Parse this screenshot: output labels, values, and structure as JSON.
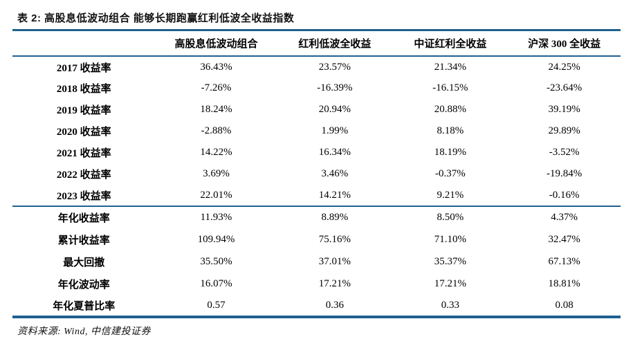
{
  "title": "表 2: 高股息低波动组合 能够长期跑赢红利低波全收益指数",
  "table": {
    "columns": {
      "label_col": "",
      "col1": "高股息低波动组合",
      "col2": "红利低波全收益",
      "col3": "中证红利全收益",
      "col4": "沪深 300 全收益"
    },
    "yearly_rows": [
      {
        "label": "2017 收益率",
        "values": [
          "36.43%",
          "23.57%",
          "21.34%",
          "24.25%"
        ]
      },
      {
        "label": "2018 收益率",
        "values": [
          "-7.26%",
          "-16.39%",
          "-16.15%",
          "-23.64%"
        ]
      },
      {
        "label": "2019 收益率",
        "values": [
          "18.24%",
          "20.94%",
          "20.88%",
          "39.19%"
        ]
      },
      {
        "label": "2020 收益率",
        "values": [
          "-2.88%",
          "1.99%",
          "8.18%",
          "29.89%"
        ]
      },
      {
        "label": "2021 收益率",
        "values": [
          "14.22%",
          "16.34%",
          "18.19%",
          "-3.52%"
        ]
      },
      {
        "label": "2022 收益率",
        "values": [
          "3.69%",
          "3.46%",
          "-0.37%",
          "-19.84%"
        ]
      },
      {
        "label": "2023 收益率",
        "values": [
          "22.01%",
          "14.21%",
          "9.21%",
          "-0.16%"
        ]
      }
    ],
    "summary_rows": [
      {
        "label": "年化收益率",
        "values": [
          "11.93%",
          "8.89%",
          "8.50%",
          "4.37%"
        ]
      },
      {
        "label": "累计收益率",
        "values": [
          "109.94%",
          "75.16%",
          "71.10%",
          "32.47%"
        ]
      },
      {
        "label": "最大回撤",
        "values": [
          "35.50%",
          "37.01%",
          "35.37%",
          "67.13%"
        ]
      },
      {
        "label": "年化波动率",
        "values": [
          "16.07%",
          "17.21%",
          "17.21%",
          "18.81%"
        ]
      },
      {
        "label": "年化夏普比率",
        "values": [
          "0.57",
          "0.36",
          "0.33",
          "0.08"
        ]
      }
    ]
  },
  "footer": {
    "source": "资料来源: Wind, 中信建投证券"
  },
  "colors": {
    "accent_line": "#1F6091",
    "text": "#000000"
  }
}
